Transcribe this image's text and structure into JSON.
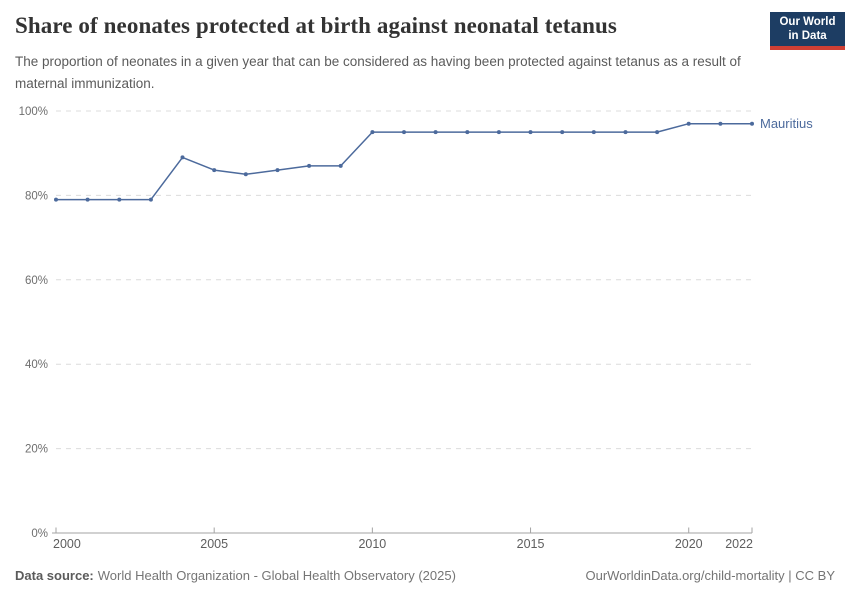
{
  "header": {
    "title": "Share of neonates protected at birth against neonatal tetanus",
    "subtitle": "The proportion of neonates in a given year that can be considered as having been protected against tetanus as a result of maternal immunization.",
    "logo": {
      "line1": "Our World",
      "line2": "in Data"
    }
  },
  "chart_data": {
    "type": "line",
    "title": "Share of neonates protected at birth against neonatal tetanus",
    "x": [
      2000,
      2001,
      2002,
      2003,
      2004,
      2005,
      2006,
      2007,
      2008,
      2009,
      2010,
      2011,
      2012,
      2013,
      2014,
      2015,
      2016,
      2017,
      2018,
      2019,
      2020,
      2021,
      2022
    ],
    "series": [
      {
        "name": "Mauritius",
        "color": "#4c6a9c",
        "values": [
          79,
          79,
          79,
          79,
          89,
          86,
          85,
          86,
          87,
          87,
          95,
          95,
          95,
          95,
          95,
          95,
          95,
          95,
          95,
          95,
          97,
          97,
          97
        ]
      }
    ],
    "xlim": [
      2000,
      2022
    ],
    "ylim": [
      0,
      100
    ],
    "x_ticks": [
      2000,
      2005,
      2010,
      2015,
      2020,
      2022
    ],
    "y_ticks": [
      0,
      20,
      40,
      60,
      80,
      100
    ],
    "y_tick_suffix": "%",
    "grid": "horizontal-dashed",
    "legend_position": "end-of-line-label",
    "xlabel": "",
    "ylabel": ""
  },
  "footer": {
    "datasource_label": "Data source:",
    "datasource_value": "World Health Organization - Global Health Observatory (2025)",
    "credit": "OurWorldinData.org/child-mortality | CC BY"
  },
  "colors": {
    "background": "#ffffff",
    "title_text": "#333333",
    "subtitle_text": "#5b5b5b",
    "x_axis_label": "#5e5e5e",
    "y_axis_label": "#6e6e6e",
    "gridline": "#dcdcdc",
    "axis_line": "#a3a3a3",
    "series_line": "#4c6a9c",
    "footer_text": "#757575",
    "logo_background": "#1d3d63",
    "logo_accent": "#cf3f34"
  }
}
